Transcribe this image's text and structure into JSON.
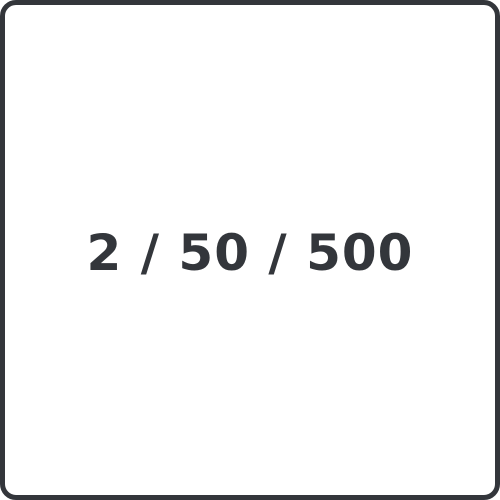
{
  "icon": {
    "name": "ratio-tile-icon",
    "text": "2 / 50 / 500",
    "colors": {
      "border": "#33363b",
      "text": "#33363b",
      "background": "#ffffff"
    }
  }
}
